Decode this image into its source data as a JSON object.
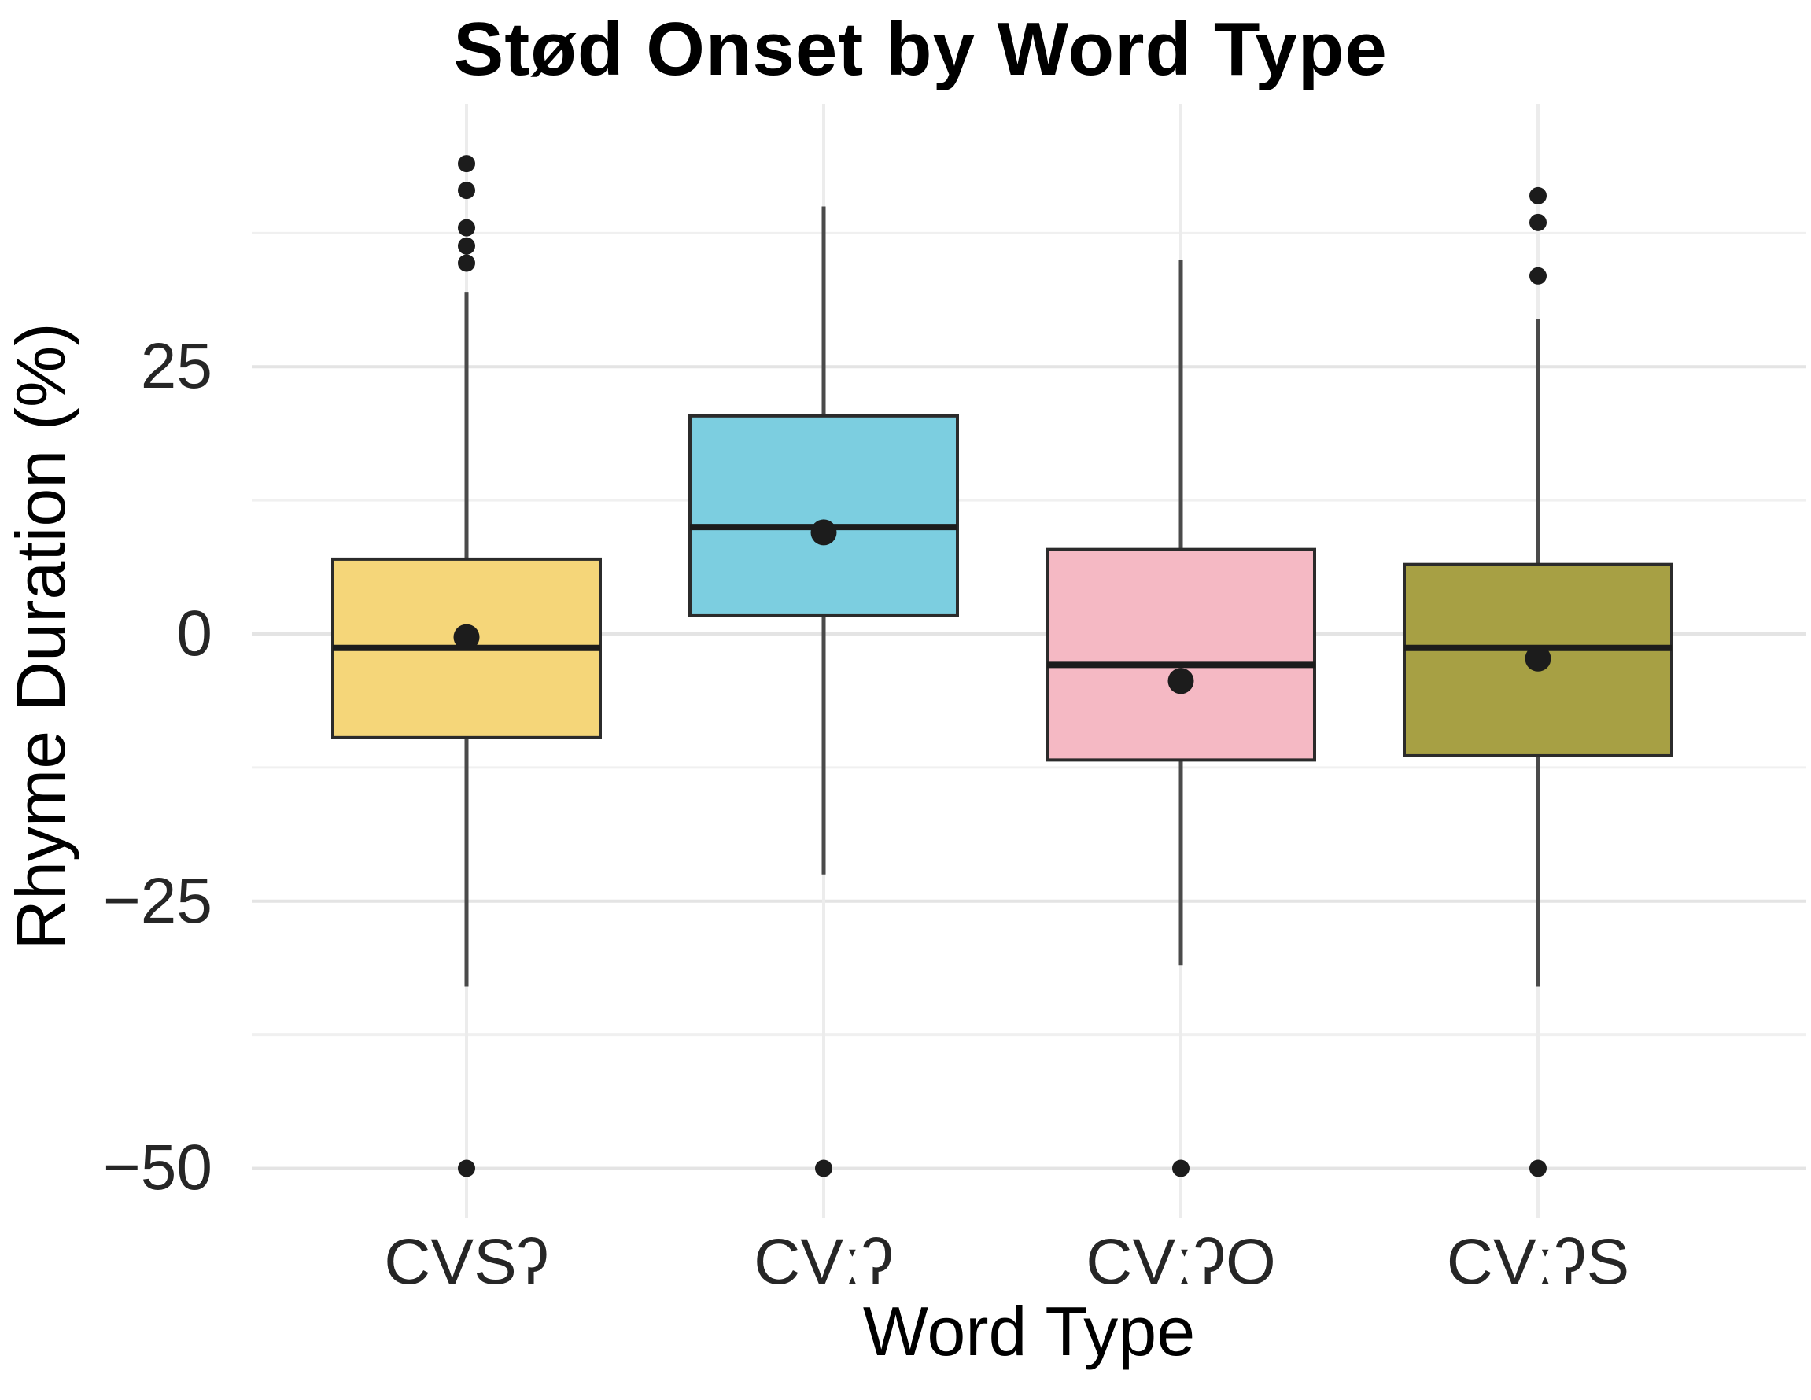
{
  "title": "Stød Onset by Word Type",
  "axes": {
    "x_title": "Word Type",
    "y_title": "Rhyme Duration (%)"
  },
  "chart_data": {
    "type": "boxplot",
    "title": "Stød Onset by Word Type",
    "xlabel": "Word Type",
    "ylabel": "Rhyme Duration (%)",
    "ylim": [
      -54.6,
      49.6
    ],
    "yticks_major": [
      25,
      0,
      -25,
      -50
    ],
    "ytick_labels": [
      "25",
      "0",
      "−25",
      "−50"
    ],
    "yticks_minor": [
      37.5,
      12.5,
      -12.5,
      -37.5
    ],
    "grid": "major and minor horizontal gridlines, vertical gridline per category, no axis lines",
    "legend": "none",
    "categories": [
      "CVSʔ",
      "CVːʔ",
      "CVːʔO",
      "CVːʔS"
    ],
    "series": [
      {
        "category": "CVSʔ",
        "fill_color": "#F5D679",
        "whisker_low": -33,
        "q1": -9.7,
        "median": -1.3,
        "q3": 7.0,
        "whisker_high": 32,
        "mean": -0.3,
        "outliers": [
          44,
          41.5,
          38,
          36.3,
          34.7,
          -50
        ]
      },
      {
        "category": "CVːʔ",
        "fill_color": "#7CCEE0",
        "whisker_low": -22.5,
        "q1": 1.7,
        "median": 10,
        "q3": 20.4,
        "whisker_high": 40,
        "mean": 9.5,
        "outliers": [
          -50
        ]
      },
      {
        "category": "CVːʔO",
        "fill_color": "#F5B9C4",
        "whisker_low": -31,
        "q1": -11.8,
        "median": -2.9,
        "q3": 7.9,
        "whisker_high": 35,
        "mean": -4.4,
        "outliers": [
          -50
        ]
      },
      {
        "category": "CVːʔS",
        "fill_color": "#A7A044",
        "whisker_low": -33,
        "q1": -11.4,
        "median": -1.3,
        "q3": 6.5,
        "whisker_high": 29.5,
        "mean": -2.3,
        "outliers": [
          41,
          38.5,
          33.5,
          -50
        ]
      }
    ],
    "style_colors": {
      "box_border": "#2B2B2B",
      "median_line": "#1C1C1C",
      "whisker": "#4A4A4A",
      "point": "#1C1C1C",
      "grid_major": "#E4E4E4",
      "grid_minor": "#F0F0F0",
      "grid_vertical": "#ECECEC",
      "background": "#FFFFFF"
    }
  }
}
